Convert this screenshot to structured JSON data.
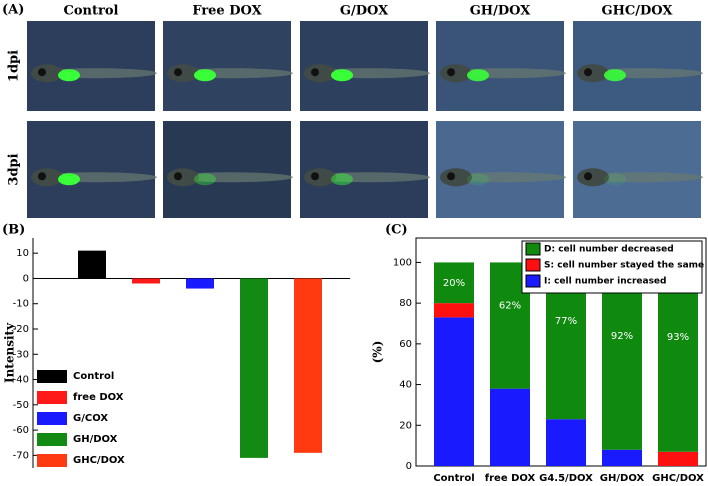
{
  "image_grid": {
    "label": "(A)",
    "columns": [
      "Control",
      "Free DOX",
      "G/DOX",
      "GH/DOX",
      "GHC/DOX"
    ],
    "rows": [
      "1dpi",
      "3dpi"
    ]
  },
  "chart_data": [
    {
      "type": "bar",
      "label": "(B)",
      "ylabel": "Intensity",
      "categories": [
        null
      ],
      "series": [
        {
          "name": "Control",
          "color": "#000000",
          "values": [
            11
          ]
        },
        {
          "name": "free DOX",
          "color": "#ff1a1a",
          "values": [
            -2
          ]
        },
        {
          "name": "G/COX",
          "color": "#1a1aff",
          "values": [
            -4
          ]
        },
        {
          "name": "GH/DOX",
          "color": "#138a13",
          "values": [
            -71
          ]
        },
        {
          "name": "GHC/DOX",
          "color": "#ff3a10",
          "values": [
            -69
          ]
        }
      ],
      "ylim": [
        -75,
        16
      ],
      "yticks": [
        10,
        0,
        -10,
        -20,
        -30,
        -40,
        -50,
        -60,
        -70
      ],
      "legend": "lower left"
    },
    {
      "type": "stacked_bar",
      "label": "(C)",
      "ylabel": "(%)",
      "categories": [
        "Control",
        "free DOX",
        "G4.5/DOX",
        "GH/DOX",
        "GHC/DOX"
      ],
      "series": [
        {
          "name": "I: cell number increased",
          "color": "#1a1aff",
          "values": [
            73,
            38,
            23,
            8,
            0
          ]
        },
        {
          "name": "S: cell number stayed the same",
          "color": "#ff1010",
          "values": [
            7,
            0,
            0,
            0,
            7
          ]
        },
        {
          "name": "D: cell number decreased",
          "color": "#0f8a0f",
          "values": [
            20,
            62,
            77,
            92,
            93
          ],
          "value_labels": [
            "20%",
            "62%",
            "77%",
            "92%",
            "93%"
          ]
        }
      ],
      "ylim": [
        0,
        112
      ],
      "yticks": [
        0,
        20,
        40,
        60,
        80,
        100
      ],
      "legend": "upper right"
    }
  ]
}
